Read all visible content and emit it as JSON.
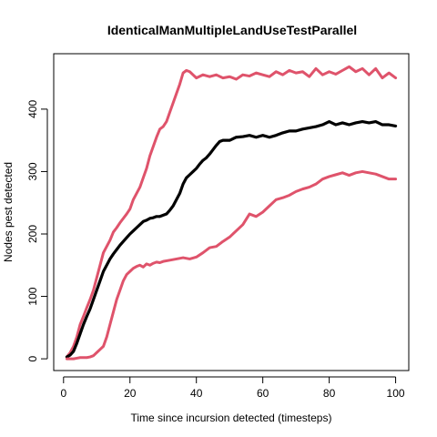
{
  "chart_data": {
    "type": "line",
    "title": "IdenticalManMultipleLandUseTestParallel",
    "xlabel": "Time since incursion detected (timesteps)",
    "ylabel": "Nodes pest detected",
    "xlim": [
      1,
      100
    ],
    "ylim": [
      0,
      470
    ],
    "xticks": [
      0,
      20,
      40,
      60,
      80,
      100
    ],
    "yticks": [
      0,
      100,
      200,
      300,
      400
    ],
    "grid": false,
    "legend": "none",
    "series": [
      {
        "role": "upper",
        "color": "#DF536B",
        "x": [
          1,
          2,
          3,
          4,
          5,
          6,
          7,
          8,
          9,
          10,
          11,
          12,
          13,
          14,
          15,
          16,
          17,
          18,
          19,
          20,
          21,
          22,
          23,
          24,
          25,
          26,
          27,
          28,
          29,
          30,
          31,
          32,
          33,
          34,
          35,
          36,
          37,
          38,
          39,
          40,
          42,
          44,
          46,
          48,
          50,
          52,
          54,
          56,
          58,
          60,
          62,
          64,
          66,
          68,
          70,
          72,
          74,
          76,
          78,
          80,
          82,
          84,
          86,
          88,
          90,
          92,
          94,
          96,
          98,
          100
        ],
        "values": [
          3,
          10,
          20,
          35,
          55,
          68,
          82,
          95,
          110,
          130,
          150,
          170,
          180,
          190,
          203,
          210,
          218,
          225,
          232,
          240,
          255,
          265,
          275,
          290,
          305,
          325,
          340,
          355,
          368,
          372,
          380,
          395,
          410,
          425,
          440,
          458,
          462,
          460,
          455,
          450,
          455,
          452,
          455,
          450,
          452,
          448,
          455,
          453,
          458,
          455,
          452,
          460,
          455,
          462,
          458,
          460,
          452,
          465,
          455,
          460,
          456,
          462,
          468,
          460,
          465,
          455,
          465,
          450,
          458,
          450
        ]
      },
      {
        "role": "mean",
        "color": "#000000",
        "x": [
          1,
          2,
          3,
          4,
          5,
          6,
          7,
          8,
          9,
          10,
          11,
          12,
          13,
          14,
          15,
          16,
          17,
          18,
          19,
          20,
          21,
          22,
          23,
          24,
          25,
          26,
          27,
          28,
          29,
          30,
          31,
          32,
          33,
          34,
          35,
          36,
          37,
          38,
          39,
          40,
          41,
          42,
          43,
          44,
          45,
          46,
          47,
          48,
          50,
          52,
          54,
          56,
          58,
          60,
          62,
          64,
          66,
          68,
          70,
          72,
          74,
          76,
          78,
          80,
          82,
          84,
          86,
          88,
          90,
          92,
          94,
          96,
          98,
          100
        ],
        "values": [
          3,
          6,
          12,
          25,
          40,
          55,
          68,
          80,
          95,
          110,
          125,
          140,
          150,
          160,
          168,
          175,
          182,
          188,
          194,
          200,
          205,
          210,
          215,
          220,
          222,
          225,
          226,
          228,
          228,
          230,
          232,
          238,
          245,
          255,
          265,
          280,
          290,
          295,
          300,
          305,
          312,
          318,
          322,
          328,
          335,
          342,
          348,
          350,
          350,
          355,
          356,
          358,
          355,
          358,
          355,
          358,
          362,
          365,
          365,
          368,
          370,
          372,
          375,
          380,
          375,
          378,
          375,
          378,
          380,
          378,
          380,
          375,
          375,
          373
        ]
      },
      {
        "role": "lower",
        "color": "#DF536B",
        "x": [
          1,
          2,
          3,
          4,
          5,
          6,
          7,
          8,
          9,
          10,
          11,
          12,
          13,
          14,
          15,
          16,
          17,
          18,
          19,
          20,
          21,
          22,
          23,
          24,
          25,
          26,
          27,
          28,
          29,
          30,
          32,
          34,
          36,
          38,
          40,
          42,
          44,
          46,
          48,
          50,
          52,
          54,
          56,
          58,
          60,
          62,
          64,
          66,
          68,
          70,
          72,
          74,
          76,
          78,
          80,
          82,
          84,
          86,
          88,
          90,
          92,
          94,
          96,
          98,
          100
        ],
        "values": [
          0,
          0,
          0,
          1,
          2,
          2,
          2,
          3,
          5,
          10,
          15,
          20,
          35,
          55,
          75,
          95,
          110,
          125,
          135,
          140,
          145,
          148,
          150,
          147,
          152,
          150,
          153,
          155,
          154,
          156,
          158,
          160,
          162,
          160,
          163,
          170,
          178,
          180,
          188,
          195,
          205,
          215,
          232,
          228,
          235,
          245,
          255,
          258,
          262,
          268,
          272,
          275,
          280,
          288,
          292,
          295,
          298,
          294,
          298,
          300,
          298,
          296,
          292,
          288,
          288
        ]
      }
    ]
  }
}
